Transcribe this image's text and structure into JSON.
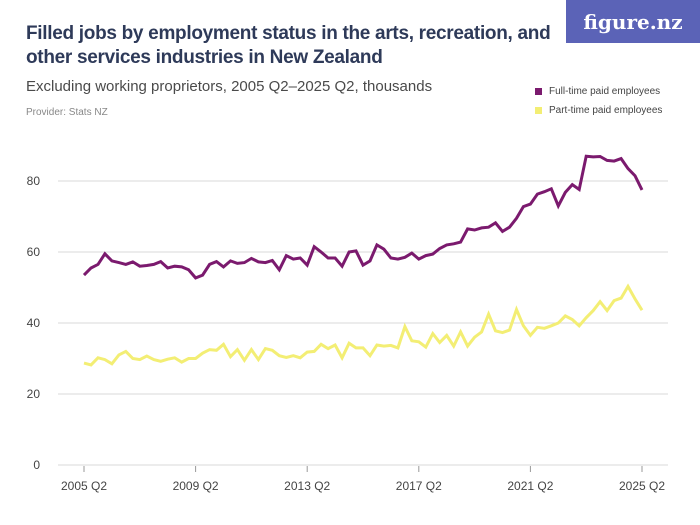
{
  "header": {
    "title": "Filled jobs by employment status in the arts, recreation, and other services industries in New Zealand",
    "subtitle": "Excluding working proprietors, 2005 Q2–2025 Q2, thousands",
    "provider": "Provider: Stats NZ",
    "logo": "figure.nz"
  },
  "colors": {
    "full_time": "#7b1a6e",
    "part_time": "#f3ee74",
    "logo_bg": "#5b63b7"
  },
  "chart_data": {
    "type": "line",
    "x_start": "2005 Q2",
    "x_end": "2025 Q2",
    "x_frequency": "quarterly",
    "x_tick_labels": [
      "2005 Q2",
      "2009 Q2",
      "2013 Q2",
      "2017 Q2",
      "2021 Q2",
      "2025 Q2"
    ],
    "y_ticks": [
      0,
      20,
      40,
      60,
      80
    ],
    "ylim": [
      0,
      90
    ],
    "grid": true,
    "legend_position": "top-right",
    "series": [
      {
        "name": "Full-time paid employees",
        "values": [
          53.5,
          55.5,
          56.5,
          59.5,
          57.5,
          57,
          56.5,
          57.2,
          56,
          56.2,
          56.5,
          57.3,
          55.5,
          56,
          55.8,
          55,
          52.7,
          53.5,
          56.5,
          57.3,
          55.8,
          57.5,
          56.8,
          57,
          58.2,
          57.2,
          57,
          57.6,
          55,
          59,
          58,
          58.3,
          56.3,
          61.5,
          60,
          58.3,
          58.3,
          56,
          60,
          60.3,
          56.3,
          57.5,
          62,
          60.8,
          58.3,
          58,
          58.5,
          59.7,
          58,
          59,
          59.4,
          61,
          62,
          62.3,
          62.8,
          66.5,
          66.2,
          66.8,
          67,
          68.2,
          65.8,
          67,
          69.5,
          72.8,
          73.5,
          76.3,
          77,
          77.8,
          73,
          76.8,
          79,
          77.6,
          87,
          86.8,
          86.9,
          85.8,
          85.6,
          86.3,
          83.5,
          81.5,
          77.5
        ]
      },
      {
        "name": "Part-time paid employees",
        "values": [
          28.7,
          28.2,
          30.2,
          29.7,
          28.5,
          31,
          32,
          30,
          29.7,
          30.7,
          29.7,
          29.2,
          29.8,
          30.2,
          29,
          30,
          30,
          31.5,
          32.5,
          32.3,
          34,
          30.5,
          32.5,
          29.5,
          32.5,
          29.7,
          32.8,
          32.3,
          30.8,
          30.3,
          30.8,
          30.2,
          31.8,
          32,
          34,
          32.8,
          33.8,
          30.2,
          34.3,
          33,
          33,
          30.8,
          33.8,
          33.5,
          33.7,
          33,
          39,
          35,
          34.7,
          33.2,
          37,
          34.5,
          36.5,
          33.5,
          37.5,
          33.5,
          36,
          37.5,
          42.5,
          37.8,
          37.3,
          38,
          43.8,
          39.2,
          36.5,
          38.8,
          38.5,
          39.2,
          40,
          42,
          41,
          39.2,
          41.5,
          43.5,
          46,
          43.5,
          46.3,
          47,
          50.3,
          46.8,
          43.6
        ]
      }
    ]
  }
}
